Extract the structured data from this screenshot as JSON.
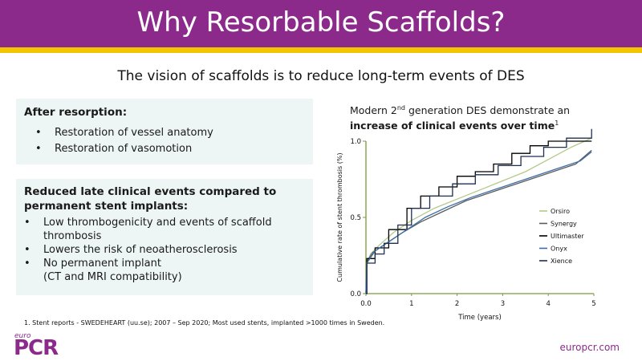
{
  "header": {
    "title": "Why Resorbable Scaffolds?"
  },
  "subtitle": "The vision of scaffolds is to reduce long-term events of DES",
  "box1": {
    "heading": "After resorption:",
    "bullets": [
      "Restoration of vessel anatomy",
      "Restoration of vasomotion"
    ]
  },
  "box2": {
    "heading": "Reduced late clinical events compared to permanent stent implants:",
    "bullets": [
      [
        "Low thrombogenicity and events of scaffold",
        "thrombosis"
      ],
      [
        "Lowers the risk of neoatherosclerosis"
      ],
      [
        "No permanent implant",
        "(CT and MRI compatibility)"
      ]
    ]
  },
  "chart_caption": {
    "line1_pre": "Modern 2",
    "line1_sup": "nd",
    "line1_post": " generation DES demonstrate an",
    "line2_bold": "increase of clinical events over time",
    "line2_sup": "1"
  },
  "chart_data": {
    "type": "line",
    "title": "",
    "xlabel": "Time (years)",
    "ylabel": "Cumulative rate of stent thrombosis (%)",
    "xlim": [
      0,
      5
    ],
    "ylim": [
      0,
      1.0
    ],
    "xticks": [
      "0.0",
      "1",
      "2",
      "3",
      "4",
      "5"
    ],
    "yticks": [
      "0.0",
      "0.5",
      "1.0"
    ],
    "series": [
      {
        "name": "Orsiro",
        "color": "#b3c98a",
        "step": false,
        "points": [
          [
            0,
            0
          ],
          [
            0.02,
            0.2
          ],
          [
            0.1,
            0.26
          ],
          [
            0.3,
            0.32
          ],
          [
            0.6,
            0.4
          ],
          [
            1.0,
            0.48
          ],
          [
            1.5,
            0.56
          ],
          [
            2.0,
            0.62
          ],
          [
            2.5,
            0.68
          ],
          [
            3.0,
            0.74
          ],
          [
            3.5,
            0.8
          ],
          [
            4.0,
            0.88
          ],
          [
            4.5,
            0.96
          ],
          [
            4.95,
            1.02
          ]
        ]
      },
      {
        "name": "Synergy",
        "color": "#5c5c5c",
        "step": false,
        "points": [
          [
            0,
            0
          ],
          [
            0.02,
            0.21
          ],
          [
            0.15,
            0.27
          ],
          [
            0.4,
            0.32
          ],
          [
            0.8,
            0.4
          ],
          [
            1.2,
            0.47
          ],
          [
            1.7,
            0.54
          ],
          [
            2.2,
            0.61
          ],
          [
            2.7,
            0.66
          ],
          [
            3.2,
            0.71
          ],
          [
            3.7,
            0.76
          ],
          [
            4.2,
            0.81
          ],
          [
            4.6,
            0.85
          ],
          [
            4.95,
            0.94
          ]
        ]
      },
      {
        "name": "Ultimaster",
        "color": "#000000",
        "step": true,
        "points": [
          [
            0,
            0
          ],
          [
            0.02,
            0.23
          ],
          [
            0.2,
            0.3
          ],
          [
            0.5,
            0.42
          ],
          [
            0.9,
            0.56
          ],
          [
            1.2,
            0.64
          ],
          [
            1.6,
            0.7
          ],
          [
            2.0,
            0.77
          ],
          [
            2.4,
            0.8
          ],
          [
            2.8,
            0.85
          ],
          [
            3.2,
            0.92
          ],
          [
            3.6,
            0.97
          ],
          [
            4.0,
            1.0
          ],
          [
            4.95,
            1.0
          ]
        ]
      },
      {
        "name": "Onyx",
        "color": "#3a6ea5",
        "step": false,
        "points": [
          [
            0,
            0
          ],
          [
            0.02,
            0.2
          ],
          [
            0.2,
            0.28
          ],
          [
            0.5,
            0.34
          ],
          [
            0.9,
            0.42
          ],
          [
            1.3,
            0.5
          ],
          [
            1.8,
            0.57
          ],
          [
            2.3,
            0.63
          ],
          [
            2.8,
            0.68
          ],
          [
            3.3,
            0.73
          ],
          [
            3.8,
            0.78
          ],
          [
            4.3,
            0.83
          ],
          [
            4.7,
            0.87
          ],
          [
            4.95,
            0.93
          ]
        ]
      },
      {
        "name": "Xience",
        "color": "#1f2f50",
        "step": true,
        "points": [
          [
            0,
            0
          ],
          [
            0.02,
            0.2
          ],
          [
            0.2,
            0.26
          ],
          [
            0.4,
            0.33
          ],
          [
            0.7,
            0.45
          ],
          [
            1.0,
            0.56
          ],
          [
            1.4,
            0.64
          ],
          [
            1.9,
            0.72
          ],
          [
            2.4,
            0.78
          ],
          [
            2.9,
            0.84
          ],
          [
            3.4,
            0.9
          ],
          [
            3.9,
            0.96
          ],
          [
            4.4,
            1.02
          ],
          [
            4.95,
            1.08
          ]
        ]
      }
    ],
    "legend_position": "right"
  },
  "footnote": "1. Stent reports - SWEDEHEART (uu.se); 2007 – Sep 2020; Most used stents, implanted >1000 times in Sweden.",
  "logo": {
    "small": "euro",
    "big": "PCR"
  },
  "site": "europcr.com"
}
